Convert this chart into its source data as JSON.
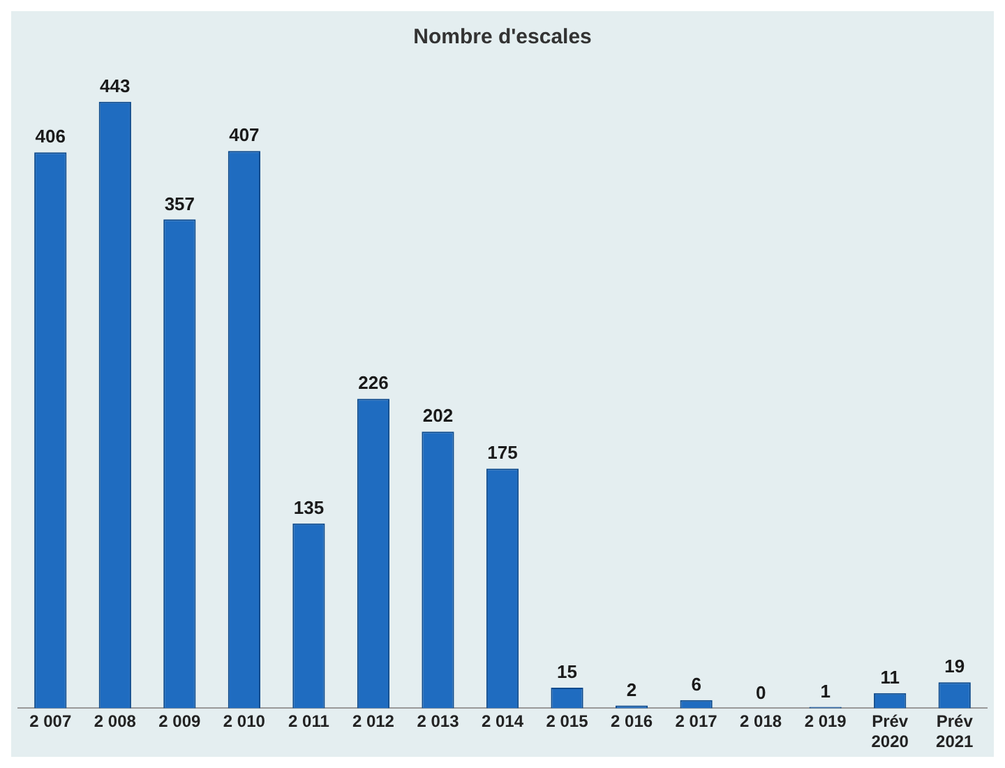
{
  "chart_data": {
    "type": "bar",
    "title": "Nombre d'escales",
    "categories": [
      "2 007",
      "2 008",
      "2 009",
      "2 010",
      "2 011",
      "2 012",
      "2 013",
      "2 014",
      "2 015",
      "2 016",
      "2 017",
      "2 018",
      "2 019",
      "Prév\n2020",
      "Prév\n2021"
    ],
    "values": [
      406,
      443,
      357,
      407,
      135,
      226,
      202,
      175,
      15,
      2,
      6,
      0,
      1,
      11,
      19
    ],
    "color": "#1f6cc0",
    "data_labels": true,
    "grid": false,
    "legend": false
  }
}
